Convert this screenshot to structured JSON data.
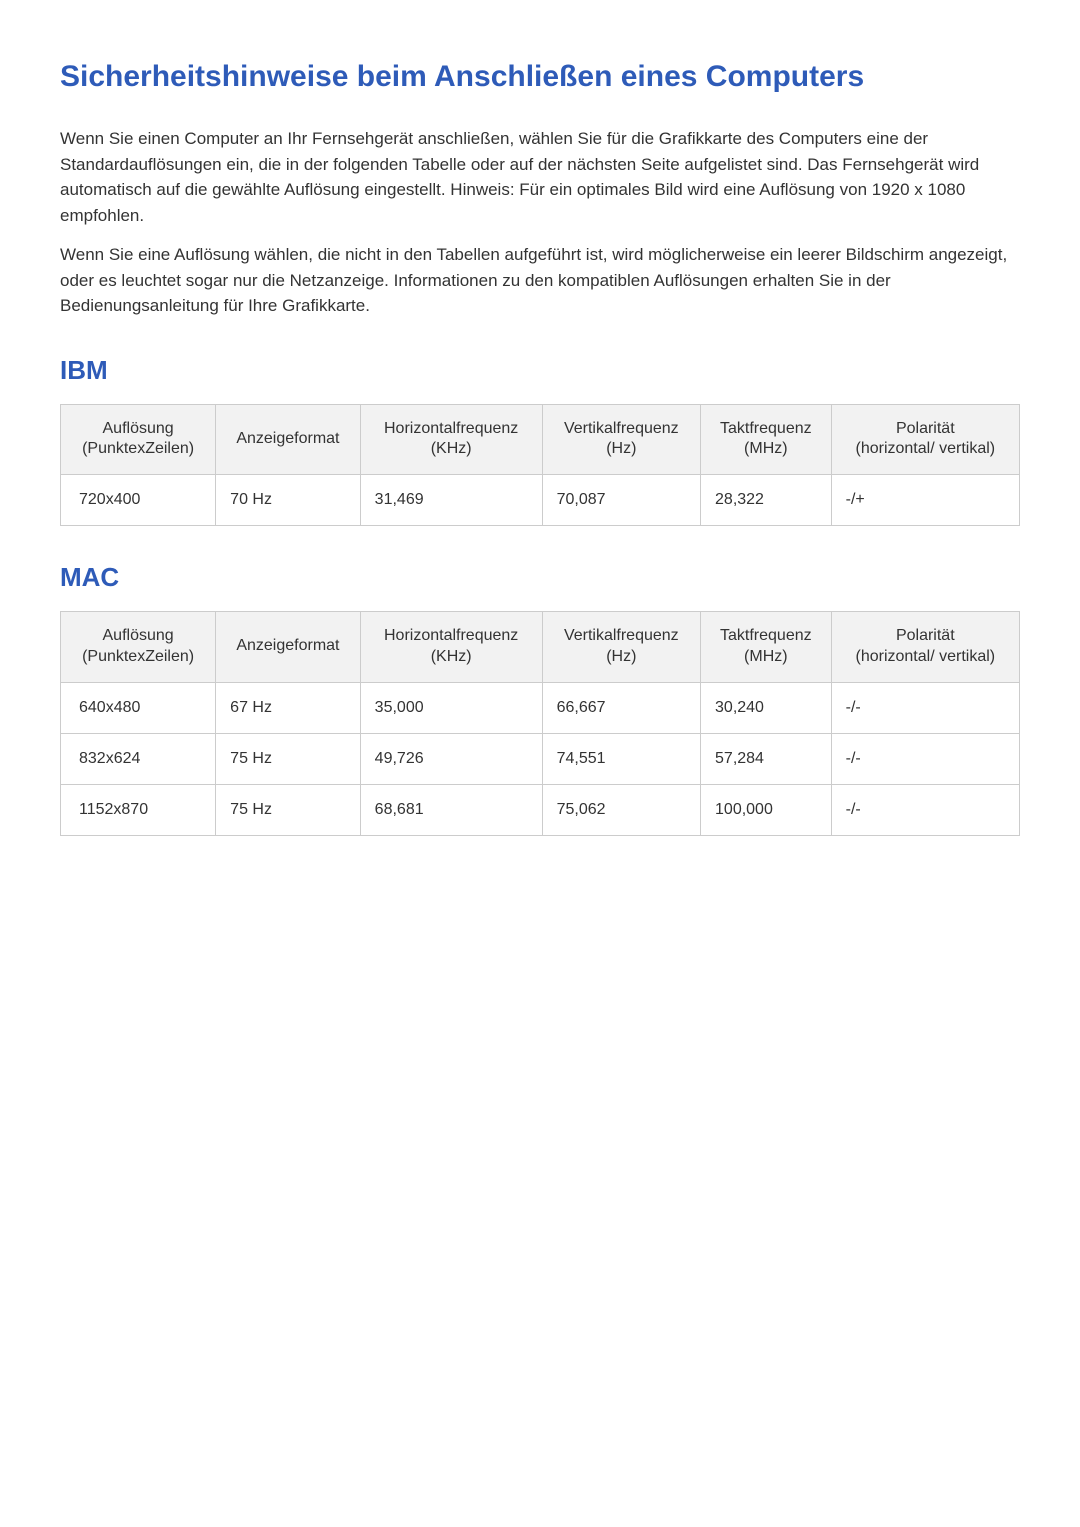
{
  "title": "Sicherheitshinweise beim Anschließen eines Computers",
  "paragraphs": [
    "Wenn Sie einen Computer an Ihr Fernsehgerät anschließen, wählen Sie für die Grafikkarte des Computers eine der Standardauflösungen ein, die in der folgenden Tabelle oder auf der nächsten Seite aufgelistet sind. Das Fernsehgerät wird automatisch auf die gewählte Auflösung eingestellt. Hinweis: Für ein optimales Bild wird eine Auflösung von 1920 x 1080 empfohlen.",
    "Wenn Sie eine Auflösung wählen, die nicht in den Tabellen aufgeführt ist, wird möglicherweise ein leerer Bildschirm angezeigt, oder es leuchtet sogar nur die Netzanzeige. Informationen zu den kompatiblen Auflösungen erhalten Sie in der Bedienungsanleitung für Ihre Grafikkarte."
  ],
  "columns": [
    "Auflösung (PunktexZeilen)",
    "Anzeigeformat",
    "Horizontalfrequenz (KHz)",
    "Vertikalfrequenz (Hz)",
    "Taktfrequenz (MHz)",
    "Polarität (horizontal/ vertikal)"
  ],
  "sections": [
    {
      "heading": "IBM",
      "rows": [
        [
          "720x400",
          "70 Hz",
          "31,469",
          "70,087",
          "28,322",
          "-/+"
        ]
      ]
    },
    {
      "heading": "MAC",
      "rows": [
        [
          "640x480",
          "67 Hz",
          "35,000",
          "66,667",
          "30,240",
          "-/-"
        ],
        [
          "832x624",
          "75 Hz",
          "49,726",
          "74,551",
          "57,284",
          "-/-"
        ],
        [
          "1152x870",
          "75 Hz",
          "68,681",
          "75,062",
          "100,000",
          "-/-"
        ]
      ]
    }
  ],
  "styling": {
    "heading_color": "#2e5bb8",
    "body_text_color": "#333333",
    "header_bg": "#f2f2f2",
    "border_color": "#cccccc",
    "page_bg": "#ffffff",
    "h1_fontsize": 30,
    "h2_fontsize": 26,
    "body_fontsize": 17,
    "table_fontsize": 16
  }
}
